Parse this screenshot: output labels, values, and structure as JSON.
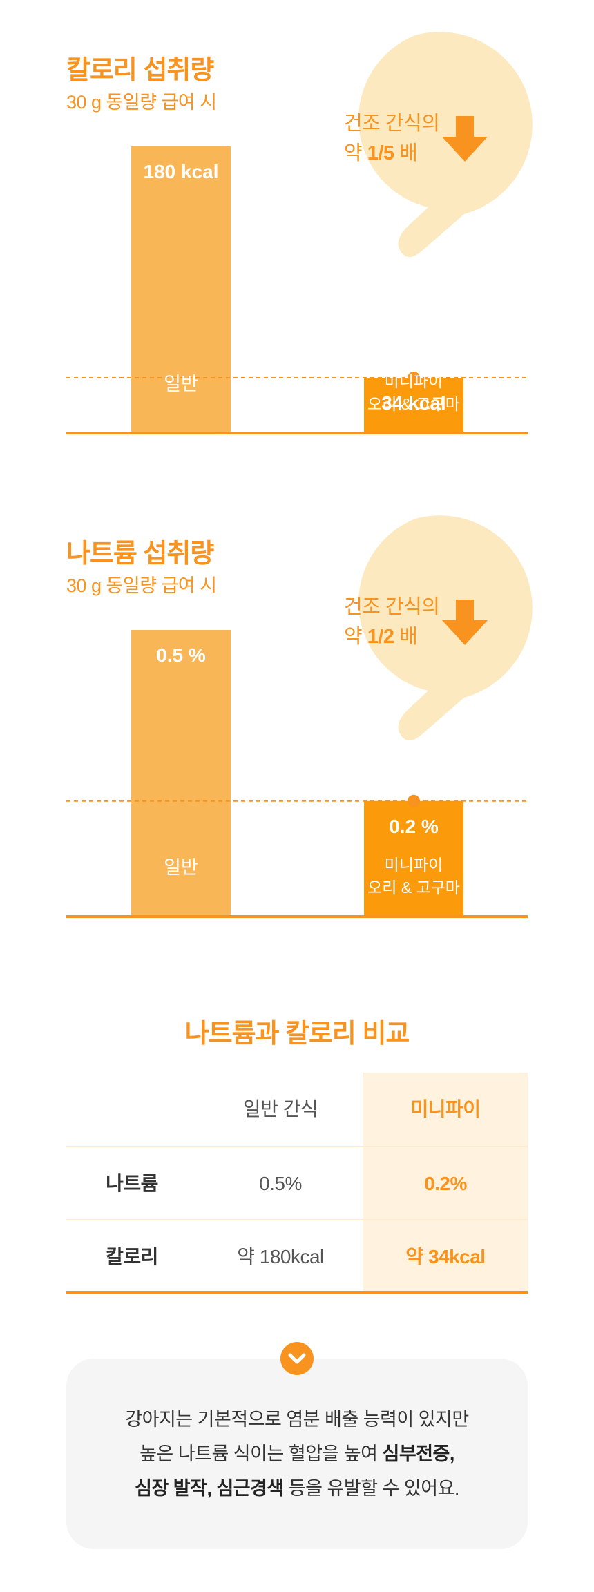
{
  "chart_data": [
    {
      "type": "bar",
      "title": "칼로리 섭취량",
      "subtitle": "30 g 동일량 급여 시",
      "categories": [
        "일반",
        "미니파이\n오리 & 고구마"
      ],
      "values": [
        180,
        34
      ],
      "value_labels": [
        "180 kcal",
        "34 kcal"
      ],
      "callout": {
        "prefix": "건조 간식의",
        "line2_pre": "약 ",
        "ratio": "1/5",
        "line2_post": " 배"
      },
      "colors": [
        "#f9b657",
        "#fb9a0a"
      ],
      "reference_line": "dashed at second bar value"
    },
    {
      "type": "bar",
      "title": "나트륨 섭취량",
      "subtitle": "30 g 동일량 급여 시",
      "categories": [
        "일반",
        "미니파이\n오리 & 고구마"
      ],
      "values": [
        0.5,
        0.2
      ],
      "value_labels": [
        "0.5 %",
        "0.2 %"
      ],
      "callout": {
        "prefix": "건조 간식의",
        "line2_pre": "약 ",
        "ratio": "1/2",
        "line2_post": " 배"
      },
      "colors": [
        "#f9b657",
        "#fb9a0a"
      ],
      "reference_line": "dashed at second bar value"
    }
  ],
  "comparison": {
    "title": "나트륨과 칼로리 비교",
    "headers": [
      "",
      "일반 간식",
      "미니파이"
    ],
    "rows": [
      [
        "나트륨",
        "0.5%",
        "0.2%"
      ],
      [
        "칼로리",
        "약 180kcal",
        "약 34kcal"
      ]
    ]
  },
  "note": {
    "icon": "chevron-down-icon",
    "line1": "강아지는 기본적으로 염분 배출 능력이 있지만",
    "line2_pre": "높은 나트륨 식이는 혈압을 높여 ",
    "line2_bold": "심부전증,",
    "line3_bold": "심장 발작, 심근경색",
    "line3_post": " 등을 유발할 수 있어요."
  },
  "colors": {
    "accent": "#f7931e",
    "bar_light": "#f9b657",
    "bar_dark": "#fb9a0a",
    "bubble": "#fde9c0",
    "highlight_col": "#fff3e0",
    "note_bg": "#f5f5f5"
  }
}
